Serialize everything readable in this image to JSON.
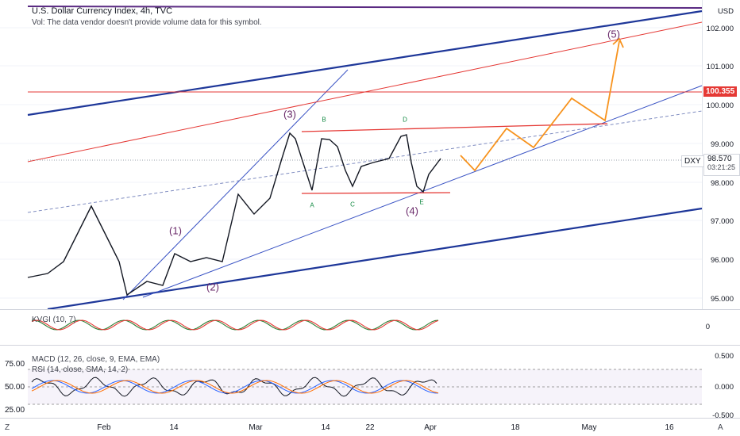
{
  "header": {
    "title": "U.S. Dollar Currency Index, 4h, TVC",
    "volume_note": "Vol: The data vendor doesn't provide volume data for this symbol."
  },
  "price_axis": {
    "currency": "USD",
    "ticks": [
      "102.000",
      "101.000",
      "100.000",
      "99.000",
      "98.000",
      "97.000",
      "96.000",
      "95.000"
    ],
    "level_label": "100.355",
    "symbol": "DXY",
    "last_price": "98.570",
    "countdown": "03:21:25"
  },
  "wave_labels": [
    "(1)",
    "(2)",
    "(3)",
    "(4)",
    "(5)"
  ],
  "pattern_points": [
    "A",
    "B",
    "C",
    "D",
    "E"
  ],
  "indicators": {
    "kvo_label": "KVGI (10, 7)",
    "kvo_tick": "0",
    "macd_label": "MACD (12, 26, close, 9, EMA, EMA)",
    "rsi_label": "RSI (14, close, SMA, 14, 2)",
    "macd_ticks": [
      "0.500",
      "0.000",
      "-0.500"
    ],
    "rsi_ticks": [
      "75.00",
      "50.00",
      "25.00"
    ]
  },
  "time_axis": [
    "Feb",
    "14",
    "Mar",
    "14",
    "22",
    "Apr",
    "18",
    "May",
    "16"
  ],
  "corner": {
    "left": "Z",
    "right": "A"
  },
  "colors": {
    "drawing_blue": "#1e3799",
    "thin_blue": "#3a53c4",
    "red_line": "#e53935",
    "orange_path": "#f7931e",
    "purple_line": "#5a2a82",
    "wave_text": "#6a2a6a",
    "point_text": "#138a43"
  }
}
